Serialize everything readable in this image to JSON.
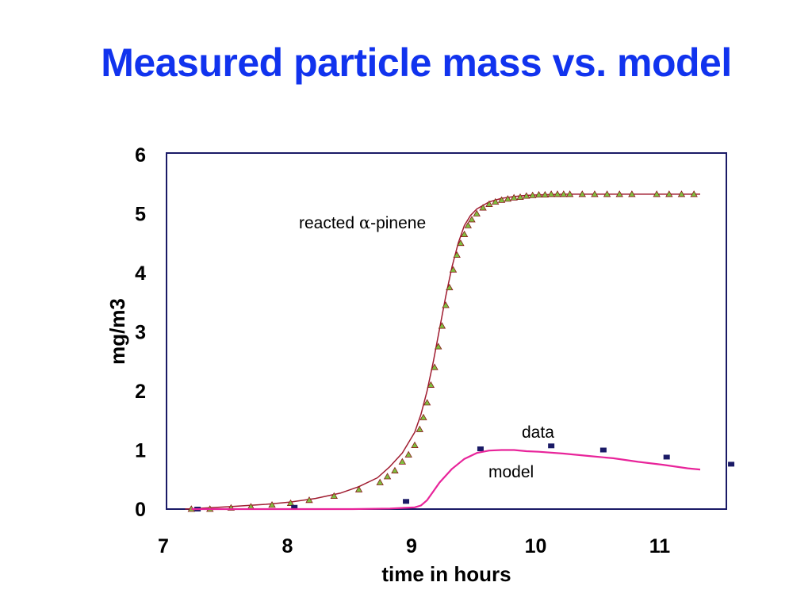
{
  "slide": {
    "title": "Measured particle mass vs. model"
  },
  "chart_data": {
    "type": "scatter",
    "xlabel": "time in hours",
    "ylabel": "mg/m3",
    "xlim": [
      7,
      11.55
    ],
    "ylim": [
      0,
      6
    ],
    "xticks": [
      "7",
      "8",
      "9",
      "10",
      "11"
    ],
    "yticks": [
      "0",
      "1",
      "2",
      "3",
      "4",
      "5",
      "6"
    ],
    "grid": false,
    "annotations": {
      "pinene_prefix": "reacted ",
      "pinene_symbol": "α",
      "pinene_suffix": "-pinene",
      "data": "data",
      "model": "model"
    },
    "series": [
      {
        "kind": "line",
        "color": "#a01c30",
        "x": [
          7.15,
          7.5,
          7.8,
          8.0,
          8.2,
          8.4,
          8.55,
          8.7,
          8.8,
          8.9,
          9.0,
          9.05,
          9.1,
          9.15,
          9.2,
          9.25,
          9.3,
          9.35,
          9.4,
          9.45,
          9.5,
          9.6,
          9.7,
          9.8,
          9.9,
          10.0,
          10.2,
          10.5,
          11.0,
          11.3
        ],
        "y": [
          0.0,
          0.04,
          0.08,
          0.12,
          0.18,
          0.27,
          0.38,
          0.53,
          0.72,
          0.95,
          1.3,
          1.6,
          2.0,
          2.5,
          3.05,
          3.6,
          4.1,
          4.5,
          4.8,
          4.97,
          5.08,
          5.2,
          5.26,
          5.29,
          5.31,
          5.32,
          5.33,
          5.33,
          5.33,
          5.33
        ]
      },
      {
        "kind": "markers-triangle",
        "color": "#7fbf3f",
        "edge": "#8a1a1a",
        "x": [
          7.2,
          7.35,
          7.52,
          7.68,
          7.85,
          8.0,
          8.15,
          8.35,
          8.55,
          8.72,
          8.78,
          8.84,
          8.9,
          8.95,
          9.0,
          9.04,
          9.07,
          9.1,
          9.13,
          9.16,
          9.19,
          9.22,
          9.25,
          9.28,
          9.31,
          9.34,
          9.37,
          9.4,
          9.43,
          9.46,
          9.5,
          9.55,
          9.6,
          9.65,
          9.7,
          9.75,
          9.8,
          9.85,
          9.9,
          9.95,
          10.0,
          10.05,
          10.1,
          10.15,
          10.2,
          10.25,
          10.35,
          10.45,
          10.55,
          10.65,
          10.75,
          10.95,
          11.05,
          11.15,
          11.25
        ],
        "y": [
          0.0,
          0.0,
          0.02,
          0.04,
          0.07,
          0.1,
          0.15,
          0.22,
          0.33,
          0.45,
          0.55,
          0.65,
          0.8,
          0.92,
          1.08,
          1.35,
          1.55,
          1.8,
          2.1,
          2.4,
          2.75,
          3.1,
          3.45,
          3.75,
          4.05,
          4.3,
          4.5,
          4.65,
          4.8,
          4.9,
          5.0,
          5.1,
          5.16,
          5.2,
          5.23,
          5.25,
          5.27,
          5.28,
          5.3,
          5.31,
          5.32,
          5.32,
          5.33,
          5.33,
          5.33,
          5.33,
          5.33,
          5.33,
          5.33,
          5.33,
          5.33,
          5.33,
          5.33,
          5.33,
          5.33
        ]
      },
      {
        "kind": "markers-square",
        "color": "#1a1a66",
        "x": [
          7.25,
          8.03,
          8.93,
          9.53,
          10.1,
          10.52,
          11.03,
          11.55
        ],
        "y": [
          0.0,
          0.03,
          0.13,
          1.02,
          1.07,
          1.0,
          0.88,
          0.76
        ]
      },
      {
        "kind": "line",
        "color": "#e8249a",
        "x": [
          7.2,
          8.5,
          8.8,
          9.0,
          9.05,
          9.1,
          9.15,
          9.2,
          9.3,
          9.4,
          9.5,
          9.6,
          9.7,
          9.8,
          9.9,
          10.0,
          10.2,
          10.4,
          10.6,
          10.8,
          11.0,
          11.2,
          11.3
        ],
        "y": [
          0.0,
          0.0,
          0.01,
          0.03,
          0.06,
          0.15,
          0.3,
          0.45,
          0.68,
          0.85,
          0.95,
          0.99,
          1.0,
          1.0,
          0.98,
          0.97,
          0.94,
          0.9,
          0.86,
          0.8,
          0.75,
          0.69,
          0.67
        ]
      }
    ]
  }
}
